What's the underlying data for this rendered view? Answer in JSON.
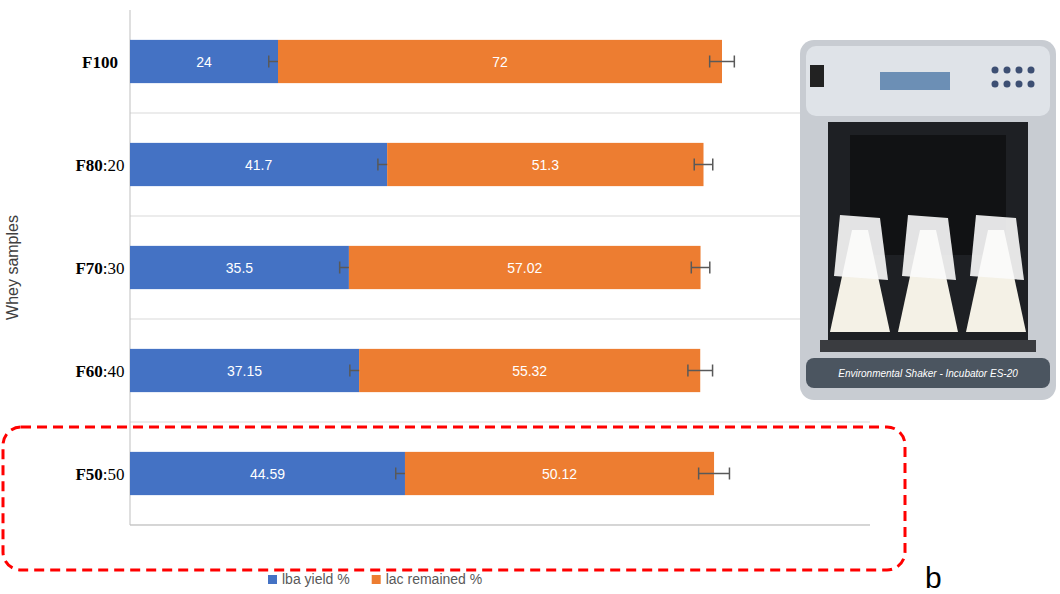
{
  "chart_data": {
    "type": "bar",
    "orientation": "horizontal",
    "stacked": true,
    "data_labels": true,
    "tick_labels": "y",
    "grid": true,
    "legend": "bottom",
    "y_label": "Whey samples",
    "categories": [
      "F100",
      "F80:20",
      "F70:30",
      "F60:40",
      "F50:50"
    ],
    "xlim": [
      0,
      120
    ],
    "series": [
      {
        "name": "lba yield %",
        "color": "#4472c4",
        "values": [
          24,
          41.7,
          35.5,
          37.15,
          44.59
        ],
        "errors": [
          1.5,
          1.5,
          1.5,
          1.5,
          1.5
        ]
      },
      {
        "name": "lac remained %",
        "color": "#ed7d31",
        "values": [
          72,
          51.3,
          57.02,
          55.32,
          50.12
        ],
        "errors": [
          2,
          1.5,
          1.5,
          2,
          2.5
        ]
      }
    ],
    "annotations": [
      {
        "type": "box",
        "category": "F50:50",
        "label": "b"
      }
    ],
    "photo_caption": "Environmental Shaker - Incubator ES-20"
  }
}
